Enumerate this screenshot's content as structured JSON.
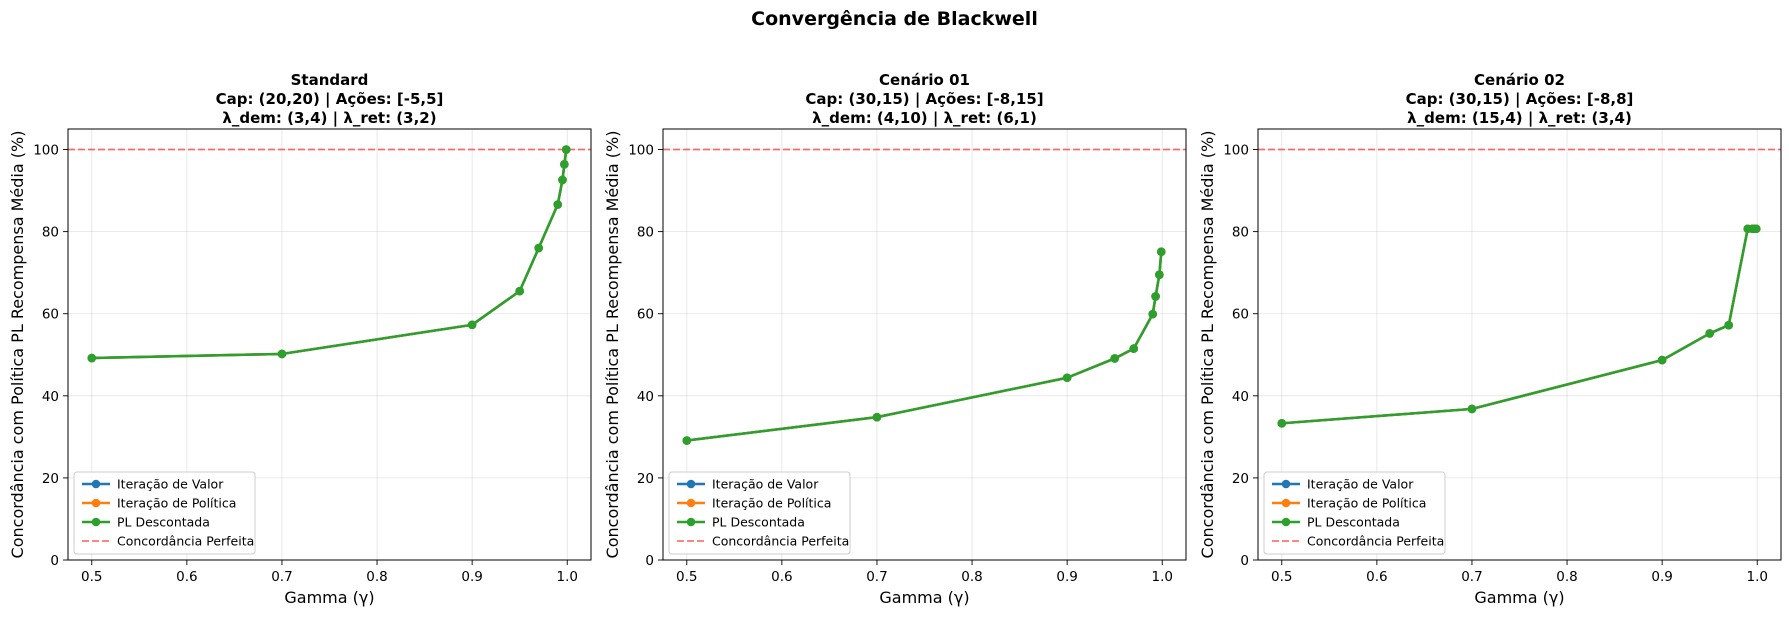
{
  "suptitle": "Convergência de Blackwell",
  "colors": {
    "value_iteration": "#1f77b4",
    "policy_iteration": "#ff7f0e",
    "pl_discounted": "#2ca02c",
    "perfect": "#ff0000"
  },
  "chart_data": [
    {
      "type": "line",
      "title_lines": [
        "Standard",
        "Cap: (20,20) | Ações: [-5,5]",
        "λ_dem: (3,4) | λ_ret: (3,2)"
      ],
      "xlabel": "Gamma (γ)",
      "ylabel": "Concordância com Política PL Recompensa Média (%)",
      "xlim": [
        0.475,
        1.025
      ],
      "ylim": [
        0,
        105
      ],
      "xticks": [
        "0.5",
        "0.6",
        "0.7",
        "0.8",
        "0.9",
        "1.0"
      ],
      "yticks": [
        "0",
        "20",
        "40",
        "60",
        "80",
        "100"
      ],
      "grid": true,
      "legend_position": "lower-left",
      "x": [
        0.5,
        0.7,
        0.9,
        0.95,
        0.97,
        0.99,
        0.995,
        0.997,
        0.999
      ],
      "series": [
        {
          "name": "Iteração de Valor",
          "values": [
            49.2,
            50.2,
            57.3,
            65.5,
            76.0,
            86.6,
            92.6,
            96.4,
            100
          ]
        },
        {
          "name": "Iteração de Política",
          "values": [
            49.2,
            50.2,
            57.3,
            65.5,
            76.0,
            86.6,
            92.6,
            96.4,
            100
          ]
        },
        {
          "name": "PL Descontada",
          "values": [
            49.2,
            50.2,
            57.3,
            65.5,
            76.0,
            86.6,
            92.6,
            96.4,
            100
          ]
        }
      ],
      "reference_line": {
        "name": "Concordância Perfeita",
        "y": 100
      }
    },
    {
      "type": "line",
      "title_lines": [
        "Cenário 01",
        "Cap: (30,15) | Ações: [-8,15]",
        "λ_dem: (4,10) | λ_ret: (6,1)"
      ],
      "xlabel": "Gamma (γ)",
      "ylabel": "Concordância com Política PL Recompensa Média (%)",
      "xlim": [
        0.475,
        1.025
      ],
      "ylim": [
        0,
        105
      ],
      "xticks": [
        "0.5",
        "0.6",
        "0.7",
        "0.8",
        "0.9",
        "1.0"
      ],
      "yticks": [
        "0",
        "20",
        "40",
        "60",
        "80",
        "100"
      ],
      "grid": true,
      "legend_position": "lower-left",
      "x": [
        0.5,
        0.7,
        0.9,
        0.95,
        0.97,
        0.99,
        0.993,
        0.997,
        0.999
      ],
      "series": [
        {
          "name": "Iteração de Valor",
          "values": [
            29.1,
            34.8,
            44.4,
            49.1,
            51.5,
            59.9,
            64.2,
            69.5,
            75.1
          ]
        },
        {
          "name": "Iteração de Política",
          "values": [
            29.1,
            34.8,
            44.4,
            49.1,
            51.5,
            59.9,
            64.2,
            69.5,
            75.1
          ]
        },
        {
          "name": "PL Descontada",
          "values": [
            29.1,
            34.8,
            44.4,
            49.1,
            51.5,
            59.9,
            64.2,
            69.5,
            75.1
          ]
        }
      ],
      "reference_line": {
        "name": "Concordância Perfeita",
        "y": 100
      }
    },
    {
      "type": "line",
      "title_lines": [
        "Cenário 02",
        "Cap: (30,15) | Ações: [-8,8]",
        "λ_dem: (15,4) | λ_ret: (3,4)"
      ],
      "xlabel": "Gamma (γ)",
      "ylabel": "Concordância com Política PL Recompensa Média (%)",
      "xlim": [
        0.475,
        1.025
      ],
      "ylim": [
        0,
        105
      ],
      "xticks": [
        "0.5",
        "0.6",
        "0.7",
        "0.8",
        "0.9",
        "1.0"
      ],
      "yticks": [
        "0",
        "20",
        "40",
        "60",
        "80",
        "100"
      ],
      "grid": true,
      "legend_position": "lower-left",
      "x": [
        0.5,
        0.7,
        0.9,
        0.95,
        0.97,
        0.99,
        0.995,
        0.997,
        0.999
      ],
      "series": [
        {
          "name": "Iteração de Valor",
          "values": [
            33.3,
            36.8,
            48.7,
            55.2,
            57.2,
            80.7,
            80.7,
            80.7,
            80.7
          ]
        },
        {
          "name": "Iteração de Política",
          "values": [
            33.3,
            36.8,
            48.7,
            55.2,
            57.2,
            80.7,
            80.7,
            80.7,
            80.7
          ]
        },
        {
          "name": "PL Descontada",
          "values": [
            33.3,
            36.8,
            48.7,
            55.2,
            57.2,
            80.7,
            80.7,
            80.7,
            80.7
          ]
        }
      ],
      "reference_line": {
        "name": "Concordância Perfeita",
        "y": 100
      }
    }
  ]
}
